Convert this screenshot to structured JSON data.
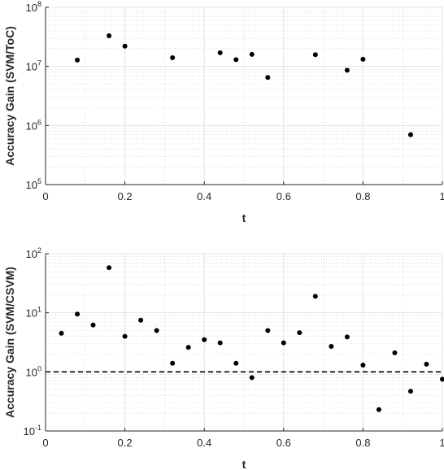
{
  "chart_data": [
    {
      "type": "scatter",
      "title": "",
      "xlabel": "t",
      "ylabel": "Accuracy Gain (SVM/ToC)",
      "xlim": [
        0,
        1
      ],
      "ylim": [
        100000,
        100000000
      ],
      "yscale": "log",
      "grid": true,
      "minor_grid": true,
      "xticks": [
        "0",
        "0.2",
        "0.4",
        "0.6",
        "0.8",
        "1"
      ],
      "yticks": [
        {
          "base": "10",
          "exp": "5",
          "value": 100000
        },
        {
          "base": "10",
          "exp": "6",
          "value": 1000000
        },
        {
          "base": "10",
          "exp": "7",
          "value": 10000000
        },
        {
          "base": "10",
          "exp": "8",
          "value": 100000000
        }
      ],
      "marker_color": "#000000",
      "x": [
        0.08,
        0.16,
        0.2,
        0.32,
        0.44,
        0.48,
        0.52,
        0.56,
        0.68,
        0.76,
        0.8,
        0.92
      ],
      "y": [
        12800000,
        33000000,
        22000000,
        14000000,
        17000000,
        13000000,
        16000000,
        6500000,
        15800000,
        8600000,
        13200000,
        700000
      ]
    },
    {
      "type": "scatter",
      "title": "",
      "xlabel": "t",
      "ylabel": "Accuracy Gain (SVM/CSVM)",
      "xlim": [
        0,
        1
      ],
      "ylim": [
        0.1,
        100
      ],
      "yscale": "log",
      "grid": true,
      "minor_grid": true,
      "xticks": [
        "0",
        "0.2",
        "0.4",
        "0.6",
        "0.8",
        "1"
      ],
      "yticks": [
        {
          "base": "10",
          "exp": "-1",
          "value": 0.1
        },
        {
          "base": "10",
          "exp": "0",
          "value": 1
        },
        {
          "base": "10",
          "exp": "1",
          "value": 10
        },
        {
          "base": "10",
          "exp": "2",
          "value": 100
        }
      ],
      "reference_line": {
        "y": 1,
        "style": "dashed",
        "color": "#000000"
      },
      "marker_color": "#000000",
      "x": [
        0.04,
        0.08,
        0.12,
        0.16,
        0.2,
        0.24,
        0.28,
        0.32,
        0.36,
        0.4,
        0.44,
        0.48,
        0.52,
        0.56,
        0.6,
        0.64,
        0.68,
        0.72,
        0.76,
        0.8,
        0.84,
        0.88,
        0.92,
        0.96,
        1.0
      ],
      "y": [
        4.5,
        9.5,
        6.2,
        58,
        4.0,
        7.5,
        5.0,
        1.4,
        2.6,
        3.5,
        3.1,
        1.4,
        0.8,
        5.0,
        3.1,
        4.6,
        19,
        2.7,
        3.9,
        1.3,
        0.23,
        2.1,
        0.47,
        1.35,
        0.75
      ]
    }
  ]
}
